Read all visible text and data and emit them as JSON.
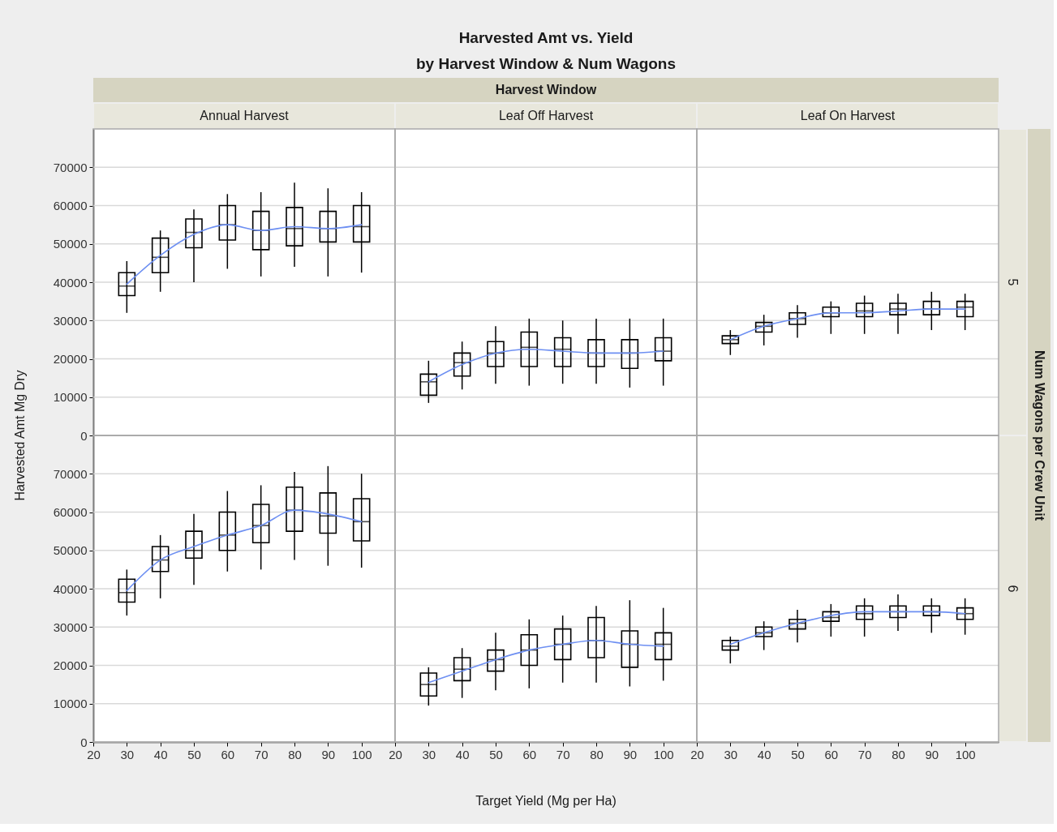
{
  "chart_data": [
    {
      "type": "other",
      "title": "Harvested Amt vs. Yield",
      "subtitle": "by Harvest Window & Num Wagons",
      "xlabel": "Target Yield (Mg per Ha)",
      "ylabel": "Harvested Amt Mg Dry",
      "annotations": [
        "Harvest Window",
        "Num Wagons per Crew Unit"
      ]
    },
    {
      "type": "box",
      "title": "Annual Harvest",
      "x": [
        30,
        40,
        50,
        60,
        70,
        80,
        90,
        100
      ],
      "xlim": [
        20,
        110
      ],
      "xticks": [
        20,
        30,
        40,
        50,
        60,
        70,
        80,
        90,
        100
      ],
      "ylim": [
        0,
        80000
      ],
      "yticks": [
        0,
        10000,
        20000,
        30000,
        40000,
        50000,
        60000,
        70000
      ],
      "grid": "y",
      "tick_labels": "y",
      "series": [
        {
          "type": "box",
          "color": "#000000",
          "boxes": [
            {
              "low": 32000,
              "q1": 36500,
              "median": 39000,
              "q3": 42500,
              "high": 45500
            },
            {
              "low": 37500,
              "q1": 42500,
              "median": 46500,
              "q3": 51500,
              "high": 53500
            },
            {
              "low": 40000,
              "q1": 49000,
              "median": 53000,
              "q3": 56500,
              "high": 59000
            },
            {
              "low": 43500,
              "q1": 51000,
              "median": 55000,
              "q3": 60000,
              "high": 63000
            },
            {
              "low": 41500,
              "q1": 48500,
              "median": 53500,
              "q3": 58500,
              "high": 63500
            },
            {
              "low": 44000,
              "q1": 49500,
              "median": 54000,
              "q3": 59500,
              "high": 66000
            },
            {
              "low": 41500,
              "q1": 50500,
              "median": 54000,
              "q3": 58500,
              "high": 64500
            },
            {
              "low": 42500,
              "q1": 50500,
              "median": 54500,
              "q3": 60000,
              "high": 63500
            }
          ]
        },
        {
          "type": "line",
          "color": "#6d8ff2",
          "values": [
            39500,
            47000,
            52500,
            55000,
            53500,
            54500,
            54000,
            55000
          ]
        }
      ]
    },
    {
      "type": "box",
      "title": "Leaf Off Harvest",
      "x": [
        30,
        40,
        50,
        60,
        70,
        80,
        90,
        100
      ],
      "xlim": [
        20,
        110
      ],
      "xticks": [
        20,
        30,
        40,
        50,
        60,
        70,
        80,
        90,
        100
      ],
      "ylim": [
        0,
        80000
      ],
      "yticks": [
        0,
        10000,
        20000,
        30000,
        40000,
        50000,
        60000,
        70000
      ],
      "grid": "y",
      "tick_labels": false,
      "series": [
        {
          "type": "box",
          "color": "#000000",
          "boxes": [
            {
              "low": 8500,
              "q1": 10500,
              "median": 14000,
              "q3": 16000,
              "high": 19500
            },
            {
              "low": 12000,
              "q1": 15500,
              "median": 19000,
              "q3": 21500,
              "high": 24500
            },
            {
              "low": 13500,
              "q1": 18000,
              "median": 21500,
              "q3": 24500,
              "high": 28500
            },
            {
              "low": 13000,
              "q1": 18000,
              "median": 23000,
              "q3": 27000,
              "high": 30500
            },
            {
              "low": 13500,
              "q1": 18000,
              "median": 22500,
              "q3": 25500,
              "high": 30000
            },
            {
              "low": 13500,
              "q1": 18000,
              "median": 21500,
              "q3": 25000,
              "high": 30500
            },
            {
              "low": 12500,
              "q1": 17500,
              "median": 21500,
              "q3": 25000,
              "high": 30500
            },
            {
              "low": 13000,
              "q1": 19500,
              "median": 22000,
              "q3": 25500,
              "high": 30500
            }
          ]
        },
        {
          "type": "line",
          "color": "#6d8ff2",
          "values": [
            14000,
            18500,
            21500,
            22500,
            22000,
            21500,
            21500,
            22000
          ]
        }
      ]
    },
    {
      "type": "box",
      "title": "Leaf On Harvest",
      "annotations": [
        "5"
      ],
      "x": [
        30,
        40,
        50,
        60,
        70,
        80,
        90,
        100
      ],
      "xlim": [
        20,
        110
      ],
      "xticks": [
        20,
        30,
        40,
        50,
        60,
        70,
        80,
        90,
        100
      ],
      "ylim": [
        0,
        80000
      ],
      "yticks": [
        0,
        10000,
        20000,
        30000,
        40000,
        50000,
        60000,
        70000
      ],
      "grid": "y",
      "tick_labels": false,
      "series": [
        {
          "type": "box",
          "color": "#000000",
          "boxes": [
            {
              "low": 21000,
              "q1": 24000,
              "median": 25000,
              "q3": 26000,
              "high": 27500
            },
            {
              "low": 23500,
              "q1": 27000,
              "median": 28500,
              "q3": 29500,
              "high": 31500
            },
            {
              "low": 25500,
              "q1": 29000,
              "median": 30500,
              "q3": 32000,
              "high": 34000
            },
            {
              "low": 26500,
              "q1": 31000,
              "median": 32000,
              "q3": 33500,
              "high": 35000
            },
            {
              "low": 26500,
              "q1": 31000,
              "median": 32500,
              "q3": 34500,
              "high": 36500
            },
            {
              "low": 26500,
              "q1": 31500,
              "median": 33000,
              "q3": 34500,
              "high": 37000
            },
            {
              "low": 27500,
              "q1": 31500,
              "median": 33000,
              "q3": 35000,
              "high": 37500
            },
            {
              "low": 27500,
              "q1": 31000,
              "median": 33500,
              "q3": 35000,
              "high": 37000
            }
          ]
        },
        {
          "type": "line",
          "color": "#6d8ff2",
          "values": [
            25000,
            28500,
            30500,
            32000,
            32000,
            32500,
            33000,
            33000
          ]
        }
      ]
    },
    {
      "type": "box",
      "x": [
        30,
        40,
        50,
        60,
        70,
        80,
        90,
        100
      ],
      "xlim": [
        20,
        110
      ],
      "xticks": [
        20,
        30,
        40,
        50,
        60,
        70,
        80,
        90,
        100
      ],
      "ylim": [
        0,
        80000
      ],
      "yticks": [
        0,
        10000,
        20000,
        30000,
        40000,
        50000,
        60000,
        70000
      ],
      "grid": "y",
      "series": [
        {
          "type": "box",
          "color": "#000000",
          "boxes": [
            {
              "low": 33000,
              "q1": 36500,
              "median": 39000,
              "q3": 42500,
              "high": 45000
            },
            {
              "low": 37500,
              "q1": 44500,
              "median": 47500,
              "q3": 51000,
              "high": 54000
            },
            {
              "low": 41000,
              "q1": 48000,
              "median": 50000,
              "q3": 55000,
              "high": 59500
            },
            {
              "low": 44500,
              "q1": 50000,
              "median": 54000,
              "q3": 60000,
              "high": 65500
            },
            {
              "low": 45000,
              "q1": 52000,
              "median": 56500,
              "q3": 62000,
              "high": 67000
            },
            {
              "low": 47500,
              "q1": 55000,
              "median": 60500,
              "q3": 66500,
              "high": 70500
            },
            {
              "low": 46000,
              "q1": 54500,
              "median": 59000,
              "q3": 65000,
              "high": 72000
            },
            {
              "low": 45500,
              "q1": 52500,
              "median": 57500,
              "q3": 63500,
              "high": 70000
            }
          ]
        },
        {
          "type": "line",
          "color": "#6d8ff2",
          "values": [
            39500,
            47500,
            51000,
            54000,
            56500,
            60500,
            59500,
            57500
          ]
        }
      ]
    },
    {
      "type": "box",
      "x": [
        30,
        40,
        50,
        60,
        70,
        80,
        90,
        100
      ],
      "xlim": [
        20,
        110
      ],
      "xticks": [
        20,
        30,
        40,
        50,
        60,
        70,
        80,
        90,
        100
      ],
      "ylim": [
        0,
        80000
      ],
      "yticks": [
        0,
        10000,
        20000,
        30000,
        40000,
        50000,
        60000,
        70000
      ],
      "grid": "y",
      "tick_labels": "x",
      "series": [
        {
          "type": "box",
          "color": "#000000",
          "boxes": [
            {
              "low": 9500,
              "q1": 12000,
              "median": 15000,
              "q3": 18000,
              "high": 19500
            },
            {
              "low": 11500,
              "q1": 16000,
              "median": 19000,
              "q3": 22000,
              "high": 24500
            },
            {
              "low": 13500,
              "q1": 18500,
              "median": 21500,
              "q3": 24000,
              "high": 28500
            },
            {
              "low": 14000,
              "q1": 20000,
              "median": 24000,
              "q3": 28000,
              "high": 32000
            },
            {
              "low": 15500,
              "q1": 21500,
              "median": 25500,
              "q3": 29500,
              "high": 33000
            },
            {
              "low": 15500,
              "q1": 22000,
              "median": 26500,
              "q3": 32500,
              "high": 35500
            },
            {
              "low": 14500,
              "q1": 19500,
              "median": 25500,
              "q3": 29000,
              "high": 37000
            },
            {
              "low": 16000,
              "q1": 21500,
              "median": 25500,
              "q3": 28500,
              "high": 35000
            }
          ]
        },
        {
          "type": "line",
          "color": "#6d8ff2",
          "values": [
            15500,
            18500,
            21500,
            24000,
            25500,
            26500,
            25500,
            25000
          ]
        }
      ]
    },
    {
      "type": "box",
      "annotations": [
        "6"
      ],
      "x": [
        30,
        40,
        50,
        60,
        70,
        80,
        90,
        100
      ],
      "xlim": [
        20,
        110
      ],
      "xticks": [
        20,
        30,
        40,
        50,
        60,
        70,
        80,
        90,
        100
      ],
      "ylim": [
        0,
        80000
      ],
      "yticks": [
        0,
        10000,
        20000,
        30000,
        40000,
        50000,
        60000,
        70000
      ],
      "grid": "y",
      "tick_labels": "x",
      "series": [
        {
          "type": "box",
          "color": "#000000",
          "boxes": [
            {
              "low": 20500,
              "q1": 24000,
              "median": 25000,
              "q3": 26500,
              "high": 27500
            },
            {
              "low": 24000,
              "q1": 27500,
              "median": 28500,
              "q3": 30000,
              "high": 31500
            },
            {
              "low": 26000,
              "q1": 29500,
              "median": 31000,
              "q3": 32000,
              "high": 34500
            },
            {
              "low": 27500,
              "q1": 31500,
              "median": 32500,
              "q3": 34000,
              "high": 36000
            },
            {
              "low": 27500,
              "q1": 32000,
              "median": 33500,
              "q3": 35500,
              "high": 37500
            },
            {
              "low": 29000,
              "q1": 32500,
              "median": 34000,
              "q3": 35500,
              "high": 38500
            },
            {
              "low": 28500,
              "q1": 33000,
              "median": 34000,
              "q3": 35500,
              "high": 37500
            },
            {
              "low": 28000,
              "q1": 32000,
              "median": 33500,
              "q3": 35000,
              "high": 37500
            }
          ]
        },
        {
          "type": "line",
          "color": "#6d8ff2",
          "values": [
            25500,
            28500,
            31000,
            33000,
            34000,
            34000,
            34000,
            33500
          ]
        }
      ]
    }
  ]
}
